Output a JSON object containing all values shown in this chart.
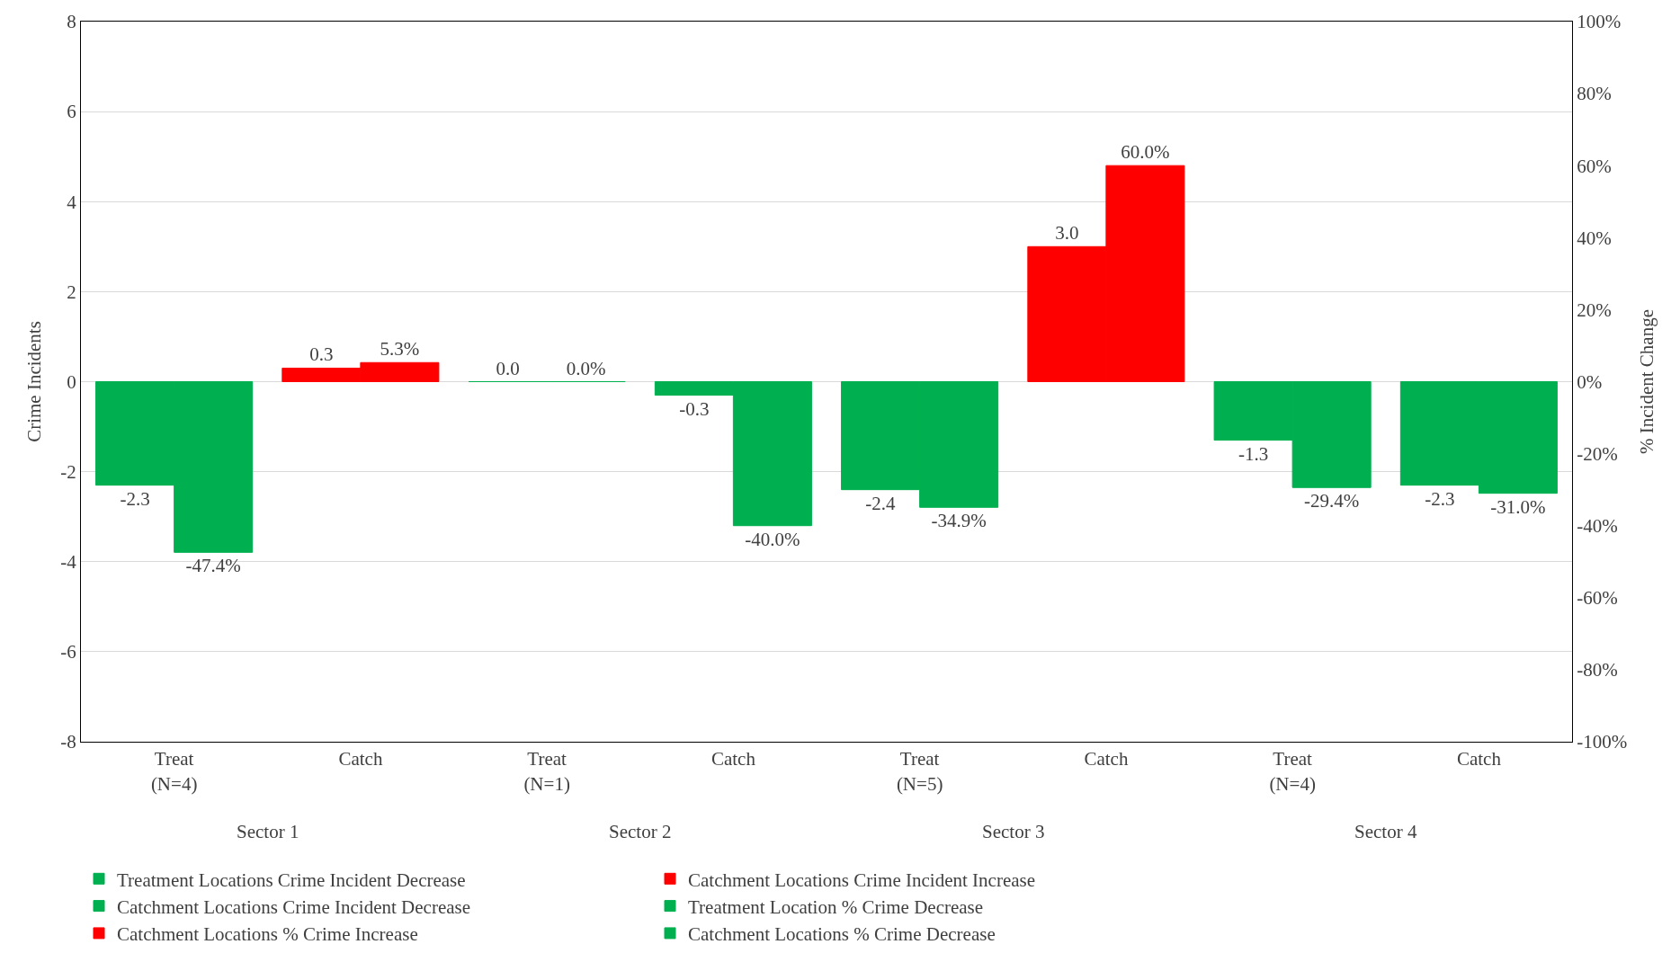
{
  "chart_data": {
    "type": "bar",
    "categories": [
      "Treat\n(N=4)",
      "Catch",
      "Treat\n(N=1)",
      "Catch",
      "Treat\n(N=5)",
      "Catch",
      "Treat\n(N=4)",
      "Catch"
    ],
    "ylabel": "Crime Incidents",
    "y2label": "% Incident Change",
    "ylim": [
      -8,
      8
    ],
    "yticks": [
      -8,
      -6,
      -4,
      -2,
      0,
      2,
      4,
      6,
      8
    ],
    "y2lim": [
      -100,
      100
    ],
    "y2ticks": [
      {
        "value": -100,
        "label": "-100%"
      },
      {
        "value": -80,
        "label": "-80%"
      },
      {
        "value": -60,
        "label": "-60%"
      },
      {
        "value": -40,
        "label": "-40%"
      },
      {
        "value": -20,
        "label": "-20%"
      },
      {
        "value": 0,
        "label": "0%"
      },
      {
        "value": 20,
        "label": "20%"
      },
      {
        "value": 40,
        "label": "40%"
      },
      {
        "value": 60,
        "label": "60%"
      },
      {
        "value": 80,
        "label": "80%"
      },
      {
        "value": 100,
        "label": "100%"
      }
    ],
    "grid": "y",
    "legend": "bottom",
    "annotations": [
      "Sector 1",
      "Sector 2",
      "Sector 3",
      "Sector 4"
    ],
    "series": [
      {
        "name": "Treatment Locations Crime Incident Decrease",
        "color": "#00b050",
        "values": [
          -2.3,
          null,
          0.0,
          null,
          -2.4,
          null,
          -1.3,
          null
        ],
        "value_labels": [
          "-2.3",
          null,
          "0.0",
          null,
          "-2.4",
          null,
          "-1.3",
          null
        ]
      },
      {
        "name": "Catchment Locations Crime Incident Increase",
        "color": "#ff0000",
        "values": [
          null,
          0.3,
          null,
          null,
          null,
          3.0,
          null,
          null
        ],
        "value_labels": [
          null,
          "0.3",
          null,
          null,
          null,
          "3.0",
          null,
          null
        ]
      },
      {
        "name": "Catchment Locations Crime Incident Decrease",
        "color": "#00b050",
        "values": [
          null,
          null,
          null,
          -0.3,
          null,
          null,
          null,
          -2.3
        ],
        "value_labels": [
          null,
          null,
          null,
          "-0.3",
          null,
          null,
          null,
          "-2.3"
        ]
      },
      {
        "name": "Treatment Location % Crime Decrease",
        "color": "#00b050",
        "axis": "y2",
        "values": [
          -47.4,
          null,
          0.0,
          null,
          -34.9,
          null,
          -29.4,
          null
        ],
        "value_labels": [
          "-47.4%",
          null,
          "0.0%",
          null,
          "-34.9%",
          null,
          "-29.4%",
          null
        ]
      },
      {
        "name": "Catchment Locations % Crime Increase",
        "color": "#ff0000",
        "axis": "y2",
        "values": [
          null,
          5.3,
          null,
          null,
          null,
          60.0,
          null,
          null
        ],
        "value_labels": [
          null,
          "5.3%",
          null,
          null,
          null,
          "60.0%",
          null,
          null
        ]
      },
      {
        "name": "Catchment Locations % Crime Decrease",
        "color": "#00b050",
        "axis": "y2",
        "values": [
          null,
          null,
          null,
          -40.0,
          null,
          null,
          null,
          -31.0
        ],
        "value_labels": [
          null,
          null,
          null,
          "-40.0%",
          null,
          null,
          null,
          "-31.0%"
        ]
      }
    ]
  }
}
